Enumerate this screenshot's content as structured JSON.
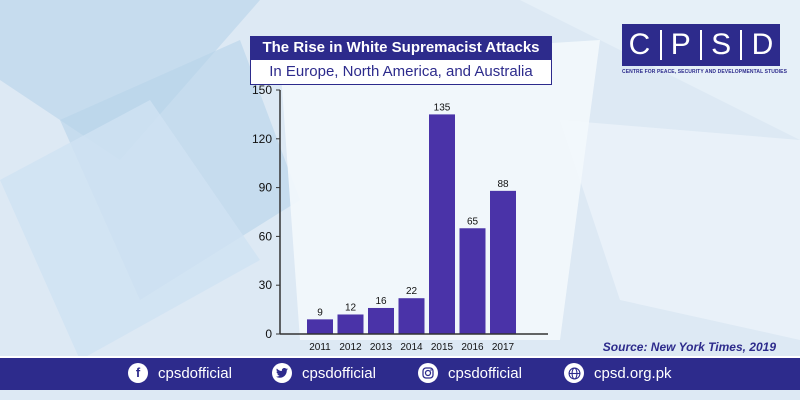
{
  "title": {
    "main": "The Rise in White Supremacist Attacks",
    "sub": "In Europe, North America, and Australia"
  },
  "logo": {
    "letters": [
      "C",
      "P",
      "S",
      "D"
    ],
    "tagline": "CENTRE FOR PEACE, SECURITY AND DEVELOPMENTAL STUDIES"
  },
  "source": "Source: New York Times, 2019",
  "footer": {
    "items": [
      {
        "icon": "facebook-icon",
        "glyph": "f",
        "label": "cpsdofficial"
      },
      {
        "icon": "twitter-icon",
        "glyph": "🐦",
        "label": "cpsdofficial"
      },
      {
        "icon": "instagram-icon",
        "glyph": "◎",
        "label": "cpsdofficial"
      },
      {
        "icon": "globe-icon",
        "glyph": "🌐",
        "label": "cpsd.org.pk"
      }
    ]
  },
  "colors": {
    "brand": "#2d2b8c",
    "bar": "#4a33a8",
    "background": "#dce9f5"
  },
  "chart_data": {
    "type": "bar",
    "categories": [
      "2011",
      "2012",
      "2013",
      "2014",
      "2015",
      "2016",
      "2017"
    ],
    "values": [
      9,
      12,
      16,
      22,
      135,
      65,
      88
    ],
    "data_labels": [
      "9",
      "12",
      "16",
      "22",
      "135",
      "65",
      "88"
    ],
    "y_ticks": [
      0,
      30,
      60,
      90,
      120,
      150
    ],
    "ylim": [
      0,
      150
    ],
    "grid": false,
    "legend": "none"
  }
}
